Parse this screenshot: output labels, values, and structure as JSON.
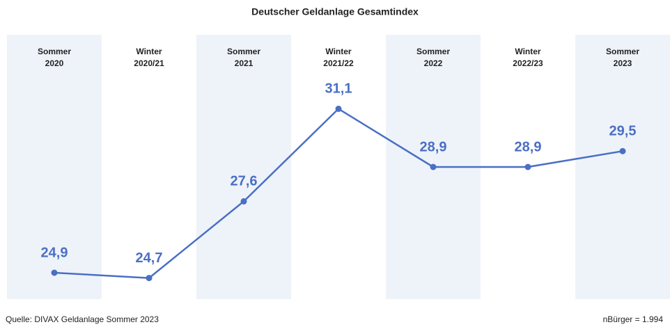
{
  "chart_data": {
    "type": "line",
    "title": "Deutscher Geldanlage Gesamtindex",
    "categories": [
      "Sommer 2020",
      "Winter 2020/21",
      "Sommer 2021",
      "Winter 2021/22",
      "Sommer 2022",
      "Winter 2022/23",
      "Sommer 2023"
    ],
    "series": [
      {
        "name": "Gesamtindex",
        "color": "#4a6fc4",
        "values": [
          24.9,
          24.7,
          27.6,
          31.1,
          28.9,
          28.9,
          29.5
        ],
        "value_labels": [
          "24,9",
          "24,7",
          "27,6",
          "31,1",
          "28,9",
          "28,9",
          "29,5"
        ]
      }
    ],
    "ylim": [
      23.9,
      33.9
    ],
    "band_color": "#eef3f9",
    "source": "Quelle: DIVAX Geldanlage Sommer 2023",
    "note": "nBürger = 1.994"
  }
}
